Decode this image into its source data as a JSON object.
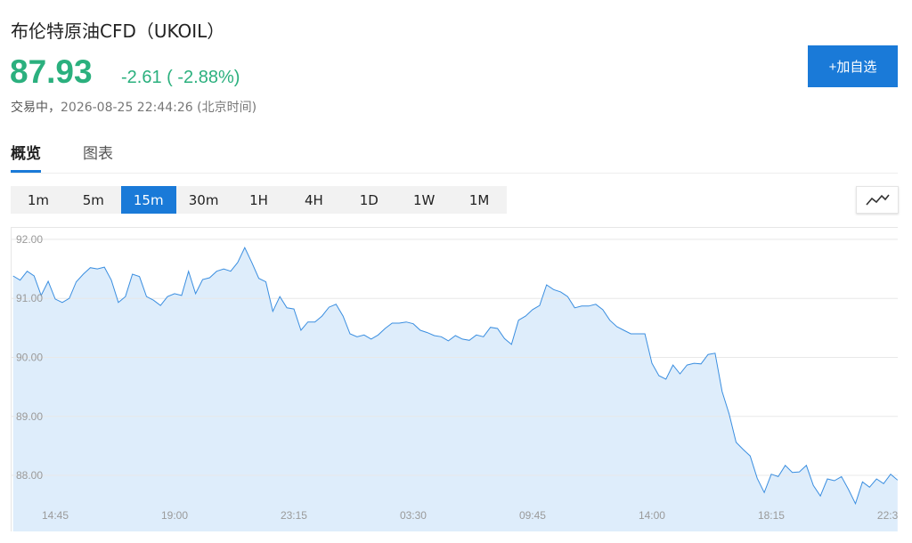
{
  "header": {
    "title": "布伦特原油CFD（UKOIL）"
  },
  "quote": {
    "price": "87.93",
    "change": "-2.61 ( -2.88%)",
    "state": "交易中，",
    "time": "2026-08-25 22:44:26 (北京时间)"
  },
  "add_button": "+加自选",
  "tabs": [
    "概览",
    "图表"
  ],
  "periods": [
    "1m",
    "5m",
    "15m",
    "30m",
    "1H",
    "4H",
    "1D",
    "1W",
    "1M"
  ],
  "chart_data": {
    "type": "area",
    "categories": [
      null,
      null,
      null,
      null,
      null,
      null,
      "14:45",
      null,
      null,
      null,
      null,
      null,
      null,
      null,
      null,
      null,
      null,
      null,
      null,
      null,
      null,
      null,
      null,
      "19:00",
      null,
      null,
      null,
      null,
      null,
      null,
      null,
      null,
      null,
      null,
      null,
      null,
      null,
      null,
      null,
      null,
      "23:15",
      null,
      null,
      null,
      null,
      null,
      null,
      null,
      null,
      null,
      null,
      null,
      null,
      null,
      null,
      null,
      null,
      "03:30",
      null,
      null,
      null,
      null,
      null,
      null,
      null,
      null,
      null,
      null,
      null,
      null,
      null,
      null,
      null,
      null,
      "09:45",
      null,
      null,
      null,
      null,
      null,
      null,
      null,
      null,
      null,
      null,
      null,
      null,
      null,
      null,
      null,
      null,
      "14:00",
      null,
      null,
      null,
      null,
      null,
      null,
      null,
      null,
      null,
      null,
      null,
      null,
      null,
      null,
      null,
      null,
      "18:15",
      null,
      null,
      null,
      null,
      null,
      null,
      null,
      null,
      null,
      null,
      null,
      null,
      null,
      null,
      null,
      null,
      "22:30",
      null
    ],
    "series": [
      {
        "name": "UKOIL",
        "color": "#3a8ee0",
        "values": [
          91.38,
          91.31,
          91.46,
          91.38,
          91.05,
          91.29,
          90.99,
          90.93,
          91.0,
          91.28,
          91.41,
          91.52,
          91.5,
          91.53,
          91.31,
          90.93,
          91.03,
          91.41,
          91.37,
          91.03,
          90.97,
          90.88,
          91.03,
          91.08,
          91.05,
          91.46,
          91.08,
          91.32,
          91.35,
          91.46,
          91.5,
          91.46,
          91.61,
          91.86,
          91.61,
          91.34,
          91.28,
          90.78,
          91.03,
          90.84,
          90.82,
          90.46,
          90.6,
          90.6,
          90.7,
          90.85,
          90.9,
          90.7,
          90.4,
          90.35,
          90.38,
          90.31,
          90.38,
          90.49,
          90.58,
          90.58,
          90.6,
          90.57,
          90.46,
          90.42,
          90.37,
          90.35,
          90.28,
          90.37,
          90.31,
          90.29,
          90.38,
          90.35,
          90.51,
          90.49,
          90.32,
          90.22,
          90.63,
          90.7,
          90.81,
          90.88,
          91.23,
          91.15,
          91.11,
          91.03,
          90.84,
          90.87,
          90.87,
          90.9,
          90.81,
          90.63,
          90.52,
          90.46,
          90.4,
          90.4,
          90.4,
          89.9,
          89.69,
          89.63,
          89.87,
          89.72,
          89.87,
          89.9,
          89.89,
          90.05,
          90.07,
          89.42,
          89.04,
          88.56,
          88.44,
          88.33,
          87.95,
          87.71,
          88.02,
          87.98,
          88.17,
          88.05,
          88.06,
          88.17,
          87.83,
          87.65,
          87.94,
          87.91,
          87.98,
          87.76,
          87.52,
          87.89,
          87.8,
          87.94,
          87.86,
          88.02,
          87.92
        ]
      }
    ],
    "ylim": [
      87.05,
      92.21
    ],
    "yticks": [
      {
        "value": 88,
        "label": "88.00"
      },
      {
        "value": 89,
        "label": "89.00"
      },
      {
        "value": 90,
        "label": "90.00"
      },
      {
        "value": 91,
        "label": "91.00"
      },
      {
        "value": 92,
        "label": "92.00"
      }
    ],
    "grid": true,
    "fill": "#deedfb"
  }
}
